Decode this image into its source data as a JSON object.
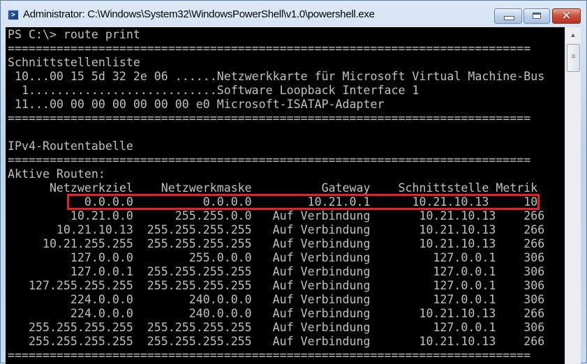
{
  "window": {
    "title": "Administrator: C:\\Windows\\System32\\WindowsPowerShell\\v1.0\\powershell.exe",
    "icon": "powershell-icon",
    "buttons": {
      "minimize": "minimize-icon",
      "maximize": "maximize-icon",
      "close": "close-icon"
    }
  },
  "console": {
    "prompt": "PS C:\\> route print",
    "separator": "===========================================================================",
    "interface_list_title": "Schnittstellenliste",
    "interfaces": [
      " 10...00 15 5d 32 2e 06 ......Netzwerkkarte für Microsoft Virtual Machine-Bus",
      "  1...........................Software Loopback Interface 1",
      " 11...00 00 00 00 00 00 00 e0 Microsoft-ISATAP-Adapter"
    ],
    "ipv4_title": "IPv4-Routentabelle",
    "active_routes_title": "Aktive Routen:",
    "route_headers": [
      "Netzwerkziel",
      "Netzwerkmaske",
      "Gateway",
      "Schnittstelle",
      "Metrik"
    ],
    "routes": [
      [
        "0.0.0.0",
        "0.0.0.0",
        "10.21.0.1",
        "10.21.10.13",
        "10"
      ],
      [
        "10.21.0.0",
        "255.255.0.0",
        "Auf Verbindung",
        "10.21.10.13",
        "266"
      ],
      [
        "10.21.10.13",
        "255.255.255.255",
        "Auf Verbindung",
        "10.21.10.13",
        "266"
      ],
      [
        "10.21.255.255",
        "255.255.255.255",
        "Auf Verbindung",
        "10.21.10.13",
        "266"
      ],
      [
        "127.0.0.0",
        "255.0.0.0",
        "Auf Verbindung",
        "127.0.0.1",
        "306"
      ],
      [
        "127.0.0.1",
        "255.255.255.255",
        "Auf Verbindung",
        "127.0.0.1",
        "306"
      ],
      [
        "127.255.255.255",
        "255.255.255.255",
        "Auf Verbindung",
        "127.0.0.1",
        "306"
      ],
      [
        "224.0.0.0",
        "240.0.0.0",
        "Auf Verbindung",
        "127.0.0.1",
        "306"
      ],
      [
        "224.0.0.0",
        "240.0.0.0",
        "Auf Verbindung",
        "10.21.10.13",
        "266"
      ],
      [
        "255.255.255.255",
        "255.255.255.255",
        "Auf Verbindung",
        "127.0.0.1",
        "306"
      ],
      [
        "255.255.255.255",
        "255.255.255.255",
        "Auf Verbindung",
        "10.21.10.13",
        "266"
      ]
    ],
    "text_color": "#c0c0c0",
    "background_color": "#000000",
    "highlight_color": "#e5202a"
  }
}
